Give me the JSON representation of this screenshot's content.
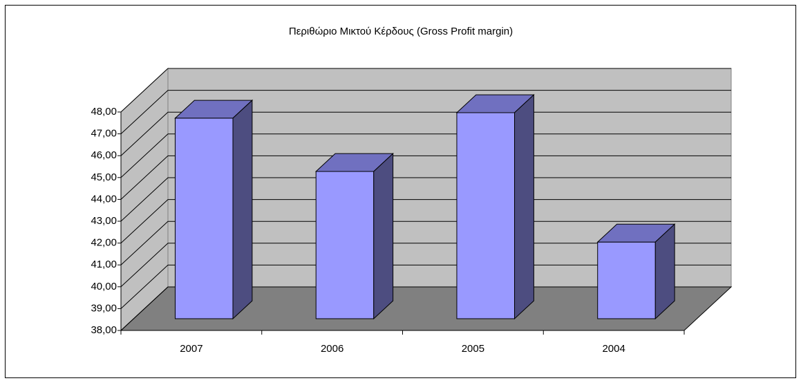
{
  "chart_data": {
    "type": "bar3d",
    "title": "Περιθώριο Μικτού Κέρδους (Gross Profit margin)",
    "categories": [
      "2007",
      "2006",
      "2005",
      "2004"
    ],
    "values": [
      47.18,
      44.74,
      47.43,
      41.51
    ],
    "color": "#9999ff",
    "ylim": [
      38,
      48
    ],
    "yticks": [
      {
        "value": 38,
        "label": "38,00"
      },
      {
        "value": 39,
        "label": "39,00"
      },
      {
        "value": 40,
        "label": "40,00"
      },
      {
        "value": 41,
        "label": "41,00"
      },
      {
        "value": 42,
        "label": "42,00"
      },
      {
        "value": 43,
        "label": "43,00"
      },
      {
        "value": 44,
        "label": "44,00"
      },
      {
        "value": 45,
        "label": "45,00"
      },
      {
        "value": 46,
        "label": "46,00"
      },
      {
        "value": 47,
        "label": "47,00"
      },
      {
        "value": 48,
        "label": "48,00"
      }
    ],
    "grid": true
  }
}
